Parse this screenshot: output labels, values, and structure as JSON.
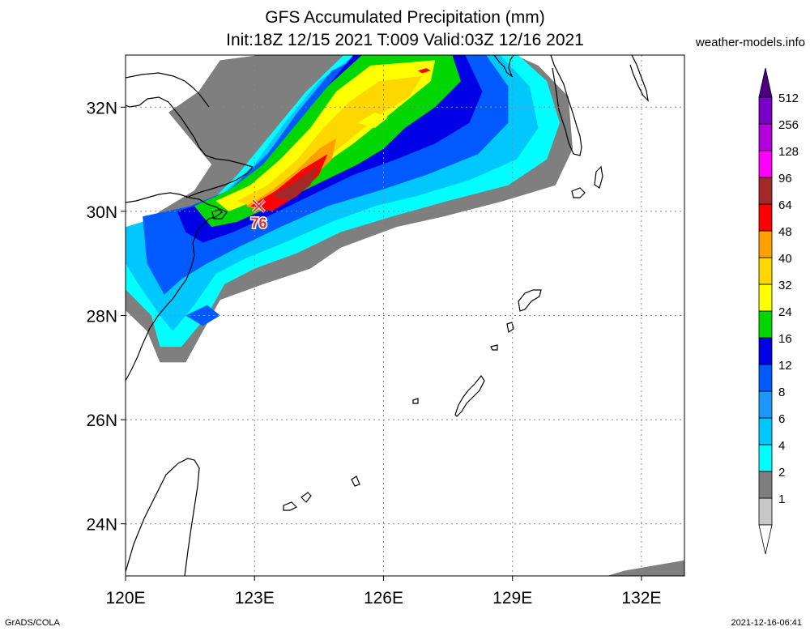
{
  "title": {
    "line1": "GFS Accumulated Precipitation (mm)",
    "line2": "Init:18Z 12/15 2021 T:009 Valid:03Z 12/16 2021"
  },
  "credit": "weather-models.info",
  "footer": {
    "left": "GrADS/COLA",
    "right": "2021-12-16-06:41"
  },
  "chart_data": {
    "type": "heatmap",
    "title": "GFS Accumulated Precipitation (mm)",
    "subtitle": "Init:18Z 12/15 2021 T:009 Valid:03Z 12/16 2021",
    "units": "mm",
    "domain": {
      "lon": [
        120,
        133
      ],
      "lat": [
        23,
        33
      ]
    },
    "x_ticks": [
      {
        "value": 120,
        "label": "120E"
      },
      {
        "value": 123,
        "label": "123E"
      },
      {
        "value": 126,
        "label": "126E"
      },
      {
        "value": 129,
        "label": "129E"
      },
      {
        "value": 132,
        "label": "132E"
      }
    ],
    "y_ticks": [
      {
        "value": 24,
        "label": "24N"
      },
      {
        "value": 26,
        "label": "26N"
      },
      {
        "value": 28,
        "label": "28N"
      },
      {
        "value": 30,
        "label": "30N"
      },
      {
        "value": 32,
        "label": "32N"
      }
    ],
    "grid": "dotted",
    "colorbar": {
      "position": "right",
      "levels": [
        {
          "value": "1",
          "color": "#c8c8c8"
        },
        {
          "value": "2",
          "color": "#7f7f7f"
        },
        {
          "value": "4",
          "color": "#00ffff"
        },
        {
          "value": "6",
          "color": "#00c8ff"
        },
        {
          "value": "8",
          "color": "#1e96ff"
        },
        {
          "value": "12",
          "color": "#005aff"
        },
        {
          "value": "16",
          "color": "#0000e6"
        },
        {
          "value": "24",
          "color": "#00d700"
        },
        {
          "value": "32",
          "color": "#ffff00"
        },
        {
          "value": "40",
          "color": "#ffd700"
        },
        {
          "value": "48",
          "color": "#ffa000"
        },
        {
          "value": "64",
          "color": "#ff0000"
        },
        {
          "value": "96",
          "color": "#a52828"
        },
        {
          "value": "128",
          "color": "#ff00ff"
        },
        {
          "value": "256",
          "color": "#b400dc"
        },
        {
          "value": "512",
          "color": "#7800c8"
        }
      ],
      "top_arrow_color": "#4b0082"
    },
    "max_marker": {
      "lon": 123.1,
      "lat": 30.1,
      "label": "76"
    },
    "precip_regions": [
      {
        "level": 1,
        "shape": [
          [
            120,
            29.5
          ],
          [
            120.8,
            30.0
          ],
          [
            121.6,
            30.4
          ],
          [
            122.0,
            30.9
          ],
          [
            121.5,
            31.4
          ],
          [
            121.0,
            31.9
          ],
          [
            121.7,
            32.3
          ],
          [
            122.2,
            32.9
          ],
          [
            124.0,
            33.1
          ],
          [
            128.8,
            33.1
          ],
          [
            129.6,
            32.8
          ],
          [
            130.3,
            32.2
          ],
          [
            130.4,
            31.2
          ],
          [
            130.0,
            30.5
          ],
          [
            128.8,
            30.2
          ],
          [
            127.4,
            29.9
          ],
          [
            126.3,
            29.7
          ],
          [
            125.0,
            29.3
          ],
          [
            124.3,
            28.9
          ],
          [
            123.2,
            28.6
          ],
          [
            122.2,
            28.3
          ],
          [
            121.8,
            27.7
          ],
          [
            121.4,
            27.1
          ],
          [
            120.8,
            27.1
          ],
          [
            120.5,
            27.7
          ],
          [
            120.0,
            28.1
          ]
        ]
      },
      {
        "level": 2,
        "shape": [
          [
            120,
            29.5
          ],
          [
            121.0,
            29.9
          ],
          [
            122.0,
            30.2
          ],
          [
            122.6,
            30.7
          ],
          [
            123.4,
            31.5
          ],
          [
            124.2,
            32.3
          ],
          [
            125.2,
            33.1
          ],
          [
            129.0,
            33.1
          ],
          [
            129.8,
            32.5
          ],
          [
            130.1,
            31.7
          ],
          [
            129.8,
            31.0
          ],
          [
            128.9,
            30.5
          ],
          [
            127.5,
            30.2
          ],
          [
            126.2,
            29.9
          ],
          [
            125.0,
            29.6
          ],
          [
            124.0,
            29.2
          ],
          [
            123.0,
            28.9
          ],
          [
            122.3,
            28.6
          ],
          [
            121.9,
            28.0
          ],
          [
            121.3,
            27.4
          ],
          [
            120.8,
            27.4
          ],
          [
            120.6,
            28.0
          ],
          [
            120.0,
            28.5
          ]
        ]
      },
      {
        "level": 3,
        "shape": [
          [
            120,
            29.7
          ],
          [
            121.2,
            30.0
          ],
          [
            122.2,
            30.3
          ],
          [
            123.0,
            30.9
          ],
          [
            123.7,
            31.7
          ],
          [
            124.5,
            32.5
          ],
          [
            125.5,
            33.1
          ],
          [
            128.6,
            33.1
          ],
          [
            129.4,
            32.4
          ],
          [
            129.6,
            31.6
          ],
          [
            129.1,
            31.0
          ],
          [
            128.0,
            30.6
          ],
          [
            126.8,
            30.3
          ],
          [
            125.8,
            30.1
          ],
          [
            124.8,
            29.8
          ],
          [
            123.7,
            29.4
          ],
          [
            122.8,
            29.1
          ],
          [
            122.1,
            28.8
          ],
          [
            121.6,
            28.2
          ],
          [
            121.1,
            27.7
          ],
          [
            120.8,
            28.0
          ],
          [
            120.3,
            28.6
          ],
          [
            120.0,
            29.0
          ]
        ]
      },
      {
        "level": 5,
        "shape": [
          [
            120.4,
            29.9
          ],
          [
            121.5,
            30.1
          ],
          [
            122.4,
            30.4
          ],
          [
            123.3,
            31.1
          ],
          [
            124.0,
            31.9
          ],
          [
            124.8,
            32.7
          ],
          [
            125.8,
            33.1
          ],
          [
            128.3,
            33.1
          ],
          [
            128.9,
            32.4
          ],
          [
            128.9,
            31.7
          ],
          [
            128.2,
            31.1
          ],
          [
            127.0,
            30.7
          ],
          [
            125.9,
            30.4
          ],
          [
            124.7,
            30.1
          ],
          [
            123.6,
            29.7
          ],
          [
            122.6,
            29.3
          ],
          [
            121.9,
            29.0
          ],
          [
            121.3,
            28.7
          ],
          [
            120.9,
            28.4
          ],
          [
            120.5,
            29.0
          ]
        ]
      },
      {
        "level": 6,
        "shape": [
          [
            121.2,
            30.0
          ],
          [
            122.0,
            30.2
          ],
          [
            122.9,
            30.6
          ],
          [
            123.8,
            31.4
          ],
          [
            124.5,
            32.2
          ],
          [
            125.3,
            33.0
          ],
          [
            127.9,
            33.0
          ],
          [
            128.3,
            32.3
          ],
          [
            128.0,
            31.7
          ],
          [
            127.2,
            31.3
          ],
          [
            126.3,
            31.0
          ],
          [
            125.3,
            30.7
          ],
          [
            124.3,
            30.3
          ],
          [
            123.3,
            29.9
          ],
          [
            122.5,
            29.6
          ],
          [
            121.8,
            29.4
          ],
          [
            121.4,
            29.6
          ]
        ]
      },
      {
        "level": 7,
        "shape": [
          [
            121.6,
            30.1
          ],
          [
            122.4,
            30.4
          ],
          [
            123.2,
            30.9
          ],
          [
            124.0,
            31.7
          ],
          [
            124.7,
            32.4
          ],
          [
            125.5,
            33.0
          ],
          [
            127.6,
            33.0
          ],
          [
            127.8,
            32.5
          ],
          [
            127.2,
            32.0
          ],
          [
            126.5,
            31.6
          ],
          [
            126.0,
            31.2
          ],
          [
            125.4,
            30.9
          ],
          [
            124.4,
            30.5
          ],
          [
            123.4,
            30.1
          ],
          [
            122.6,
            29.8
          ],
          [
            122.0,
            29.7
          ]
        ]
      },
      {
        "level": 8,
        "shape": [
          [
            122.1,
            30.2
          ],
          [
            122.9,
            30.5
          ],
          [
            123.6,
            31.0
          ],
          [
            124.3,
            31.6
          ],
          [
            124.9,
            32.3
          ],
          [
            125.7,
            32.8
          ],
          [
            127.2,
            32.9
          ],
          [
            127.1,
            32.5
          ],
          [
            126.5,
            32.1
          ],
          [
            125.9,
            31.7
          ],
          [
            125.3,
            31.3
          ],
          [
            124.6,
            30.9
          ],
          [
            123.8,
            30.5
          ],
          [
            123.0,
            30.2
          ],
          [
            122.4,
            30.0
          ]
        ]
      },
      {
        "level": 9,
        "shape": [
          [
            122.6,
            30.2
          ],
          [
            123.3,
            30.5
          ],
          [
            124.0,
            31.0
          ],
          [
            124.6,
            31.6
          ],
          [
            125.2,
            32.1
          ],
          [
            125.9,
            32.5
          ],
          [
            126.9,
            32.6
          ],
          [
            126.6,
            32.2
          ],
          [
            126.0,
            31.9
          ],
          [
            125.4,
            31.5
          ],
          [
            124.8,
            31.1
          ],
          [
            124.1,
            30.7
          ],
          [
            123.4,
            30.3
          ],
          [
            122.9,
            30.1
          ]
        ]
      },
      {
        "level": 10,
        "shape": [
          [
            122.8,
            30.1
          ],
          [
            123.4,
            30.4
          ],
          [
            124.0,
            30.8
          ],
          [
            124.5,
            31.2
          ],
          [
            124.9,
            31.4
          ],
          [
            124.8,
            31.0
          ],
          [
            124.3,
            30.6
          ],
          [
            123.7,
            30.2
          ],
          [
            123.2,
            30.0
          ]
        ]
      },
      {
        "level": 11,
        "shape": [
          [
            122.9,
            30.1
          ],
          [
            123.5,
            30.4
          ],
          [
            124.1,
            30.8
          ],
          [
            124.7,
            31.1
          ],
          [
            124.5,
            30.7
          ],
          [
            124.0,
            30.3
          ],
          [
            123.4,
            30.0
          ]
        ]
      },
      {
        "level": 12,
        "shape": [
          [
            123.4,
            30.3
          ],
          [
            124.0,
            30.6
          ],
          [
            124.5,
            30.9
          ],
          [
            124.3,
            30.5
          ],
          [
            123.8,
            30.2
          ]
        ]
      },
      {
        "level": 8,
        "shape": [
          [
            125.4,
            31.7
          ],
          [
            125.8,
            31.9
          ],
          [
            126.1,
            31.8
          ],
          [
            125.8,
            31.6
          ]
        ]
      },
      {
        "level": 11,
        "shape": [
          [
            126.8,
            32.7
          ],
          [
            127.0,
            32.75
          ],
          [
            127.1,
            32.7
          ],
          [
            126.9,
            32.65
          ]
        ]
      },
      {
        "level": 5,
        "shape": [
          [
            121.4,
            28.0
          ],
          [
            121.9,
            28.2
          ],
          [
            122.2,
            28.0
          ],
          [
            121.8,
            27.8
          ]
        ]
      },
      {
        "level": 1,
        "shape": [
          [
            131.2,
            23.0
          ],
          [
            133.0,
            23.0
          ],
          [
            133.0,
            23.3
          ],
          [
            132.3,
            23.2
          ],
          [
            131.6,
            23.1
          ]
        ]
      }
    ]
  }
}
